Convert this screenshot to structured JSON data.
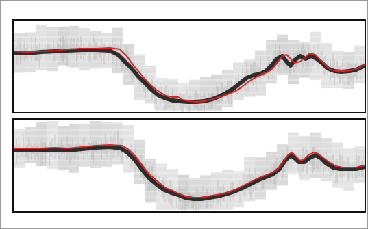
{
  "figure": {
    "panels": [
      {
        "id": "top",
        "description_free": true,
        "overlay_curve_color": "#e02020",
        "trace_color": "#111111",
        "background_gray": "#cfcfcf",
        "curve_points": [
          [
            0,
            45
          ],
          [
            20,
            46
          ],
          [
            40,
            45
          ],
          [
            60,
            44
          ],
          [
            80,
            42
          ],
          [
            100,
            41
          ],
          [
            120,
            41
          ],
          [
            140,
            40
          ],
          [
            155,
            42
          ],
          [
            165,
            52
          ],
          [
            172,
            62
          ],
          [
            180,
            72
          ],
          [
            190,
            84
          ],
          [
            200,
            95
          ],
          [
            212,
            104
          ],
          [
            222,
            110
          ],
          [
            232,
            112
          ],
          [
            240,
            112
          ],
          [
            246,
            116
          ],
          [
            256,
            118
          ],
          [
            266,
            119
          ],
          [
            278,
            118
          ],
          [
            290,
            115
          ],
          [
            300,
            112
          ],
          [
            312,
            108
          ],
          [
            322,
            104
          ],
          [
            332,
            98
          ],
          [
            342,
            90
          ],
          [
            352,
            84
          ],
          [
            362,
            78
          ],
          [
            370,
            76
          ],
          [
            378,
            70
          ],
          [
            386,
            60
          ],
          [
            392,
            52
          ],
          [
            398,
            50
          ],
          [
            404,
            56
          ],
          [
            410,
            62
          ],
          [
            418,
            60
          ],
          [
            424,
            55
          ],
          [
            432,
            48
          ],
          [
            440,
            50
          ],
          [
            446,
            56
          ],
          [
            454,
            64
          ],
          [
            462,
            72
          ],
          [
            472,
            74
          ],
          [
            482,
            74
          ],
          [
            492,
            73
          ],
          [
            502,
            70
          ],
          [
            512,
            64
          ]
        ],
        "trace_points": [
          [
            0,
            47
          ],
          [
            20,
            48
          ],
          [
            40,
            46
          ],
          [
            60,
            45
          ],
          [
            80,
            44
          ],
          [
            100,
            43
          ],
          [
            120,
            43
          ],
          [
            140,
            44
          ],
          [
            152,
            50
          ],
          [
            162,
            60
          ],
          [
            172,
            70
          ],
          [
            182,
            82
          ],
          [
            192,
            92
          ],
          [
            202,
            102
          ],
          [
            212,
            110
          ],
          [
            222,
            114
          ],
          [
            232,
            117
          ],
          [
            242,
            118
          ],
          [
            254,
            119
          ],
          [
            266,
            119
          ],
          [
            278,
            118
          ],
          [
            290,
            115
          ],
          [
            300,
            111
          ],
          [
            310,
            106
          ],
          [
            320,
            100
          ],
          [
            330,
            92
          ],
          [
            340,
            84
          ],
          [
            350,
            80
          ],
          [
            360,
            78
          ],
          [
            368,
            74
          ],
          [
            376,
            66
          ],
          [
            384,
            56
          ],
          [
            392,
            52
          ],
          [
            398,
            60
          ],
          [
            404,
            66
          ],
          [
            410,
            58
          ],
          [
            418,
            52
          ],
          [
            426,
            56
          ],
          [
            434,
            52
          ],
          [
            442,
            56
          ],
          [
            450,
            62
          ],
          [
            458,
            70
          ],
          [
            468,
            74
          ],
          [
            478,
            75
          ],
          [
            490,
            74
          ],
          [
            500,
            72
          ],
          [
            512,
            66
          ]
        ]
      },
      {
        "id": "bottom",
        "description_free": true,
        "overlay_curve_color": "#e02020",
        "trace_color": "#111111",
        "background_gray": "#cfcfcf",
        "curve_points": [
          [
            0,
            42
          ],
          [
            20,
            42
          ],
          [
            40,
            42
          ],
          [
            60,
            41
          ],
          [
            80,
            42
          ],
          [
            100,
            40
          ],
          [
            120,
            38
          ],
          [
            140,
            37
          ],
          [
            158,
            38
          ],
          [
            168,
            44
          ],
          [
            178,
            54
          ],
          [
            190,
            70
          ],
          [
            200,
            82
          ],
          [
            212,
            92
          ],
          [
            222,
            100
          ],
          [
            232,
            104
          ],
          [
            240,
            108
          ],
          [
            250,
            112
          ],
          [
            260,
            114
          ],
          [
            272,
            114
          ],
          [
            284,
            112
          ],
          [
            296,
            110
          ],
          [
            308,
            108
          ],
          [
            320,
            104
          ],
          [
            332,
            98
          ],
          [
            344,
            92
          ],
          [
            356,
            86
          ],
          [
            366,
            82
          ],
          [
            376,
            78
          ],
          [
            384,
            74
          ],
          [
            392,
            64
          ],
          [
            400,
            52
          ],
          [
            406,
            48
          ],
          [
            412,
            54
          ],
          [
            418,
            60
          ],
          [
            424,
            58
          ],
          [
            430,
            52
          ],
          [
            438,
            48
          ],
          [
            444,
            50
          ],
          [
            452,
            56
          ],
          [
            460,
            62
          ],
          [
            470,
            68
          ],
          [
            480,
            70
          ],
          [
            490,
            70
          ],
          [
            500,
            70
          ],
          [
            512,
            67
          ]
        ],
        "trace_points": [
          [
            0,
            44
          ],
          [
            20,
            45
          ],
          [
            40,
            44
          ],
          [
            60,
            44
          ],
          [
            80,
            45
          ],
          [
            100,
            43
          ],
          [
            120,
            41
          ],
          [
            140,
            40
          ],
          [
            156,
            42
          ],
          [
            166,
            48
          ],
          [
            176,
            58
          ],
          [
            188,
            74
          ],
          [
            198,
            86
          ],
          [
            210,
            96
          ],
          [
            220,
            103
          ],
          [
            230,
            107
          ],
          [
            240,
            110
          ],
          [
            250,
            114
          ],
          [
            262,
            116
          ],
          [
            274,
            116
          ],
          [
            286,
            114
          ],
          [
            298,
            112
          ],
          [
            310,
            109
          ],
          [
            322,
            105
          ],
          [
            334,
            100
          ],
          [
            346,
            94
          ],
          [
            358,
            88
          ],
          [
            368,
            84
          ],
          [
            378,
            80
          ],
          [
            388,
            72
          ],
          [
            396,
            60
          ],
          [
            404,
            52
          ],
          [
            410,
            56
          ],
          [
            416,
            62
          ],
          [
            424,
            62
          ],
          [
            432,
            56
          ],
          [
            440,
            52
          ],
          [
            448,
            56
          ],
          [
            456,
            64
          ],
          [
            466,
            70
          ],
          [
            476,
            72
          ],
          [
            488,
            72
          ],
          [
            500,
            72
          ],
          [
            512,
            69
          ]
        ]
      }
    ]
  }
}
